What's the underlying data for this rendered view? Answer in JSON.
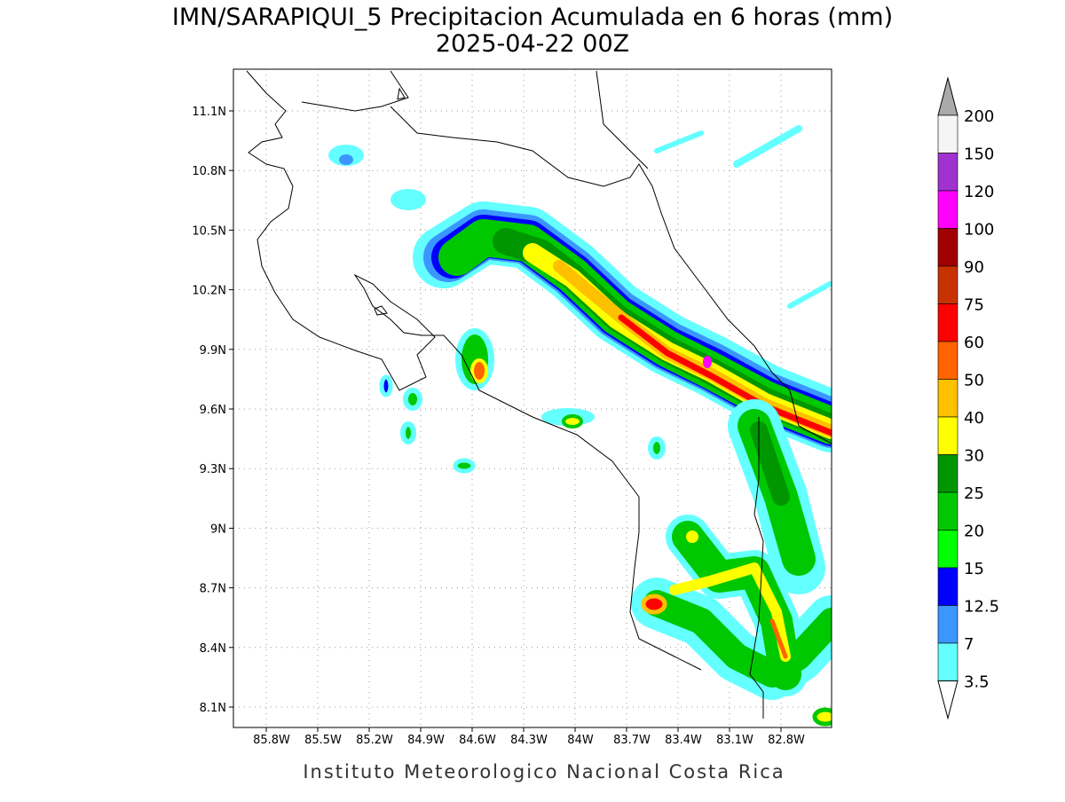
{
  "title": "IMN/SARAPIQUI_5 Precipitacion Acumulada en 6 horas (mm)",
  "subtitle": "2025-04-22 00Z",
  "x_ticks": [
    "85.8W",
    "85.5W",
    "85.2W",
    "84.9W",
    "84.6W",
    "84.3W",
    "84W",
    "83.7W",
    "83.4W",
    "83.1W",
    "82.8W"
  ],
  "y_ticks": [
    "11.1N",
    "10.8N",
    "10.5N",
    "10.2N",
    "9.9N",
    "9.6N",
    "9.3N",
    "9N",
    "8.7N",
    "8.4N",
    "8.1N"
  ],
  "colorbar": {
    "levels": [
      200,
      150,
      120,
      100,
      90,
      75,
      60,
      50,
      40,
      30,
      25,
      20,
      15,
      12.5,
      7,
      3.5
    ],
    "colors": [
      "#f5f5f5",
      "#a032d2",
      "#ff00ff",
      "#a00000",
      "#c83200",
      "#ff0000",
      "#ff6400",
      "#ffc000",
      "#ffff00",
      "#009600",
      "#00c800",
      "#00ff00",
      "#0000ff",
      "#3c96ff",
      "#64ffff"
    ],
    "over_color": "#aaaaaa",
    "under_color": "#ffffff"
  },
  "footer": "Instituto Meteorologico Nacional Costa Rica"
}
